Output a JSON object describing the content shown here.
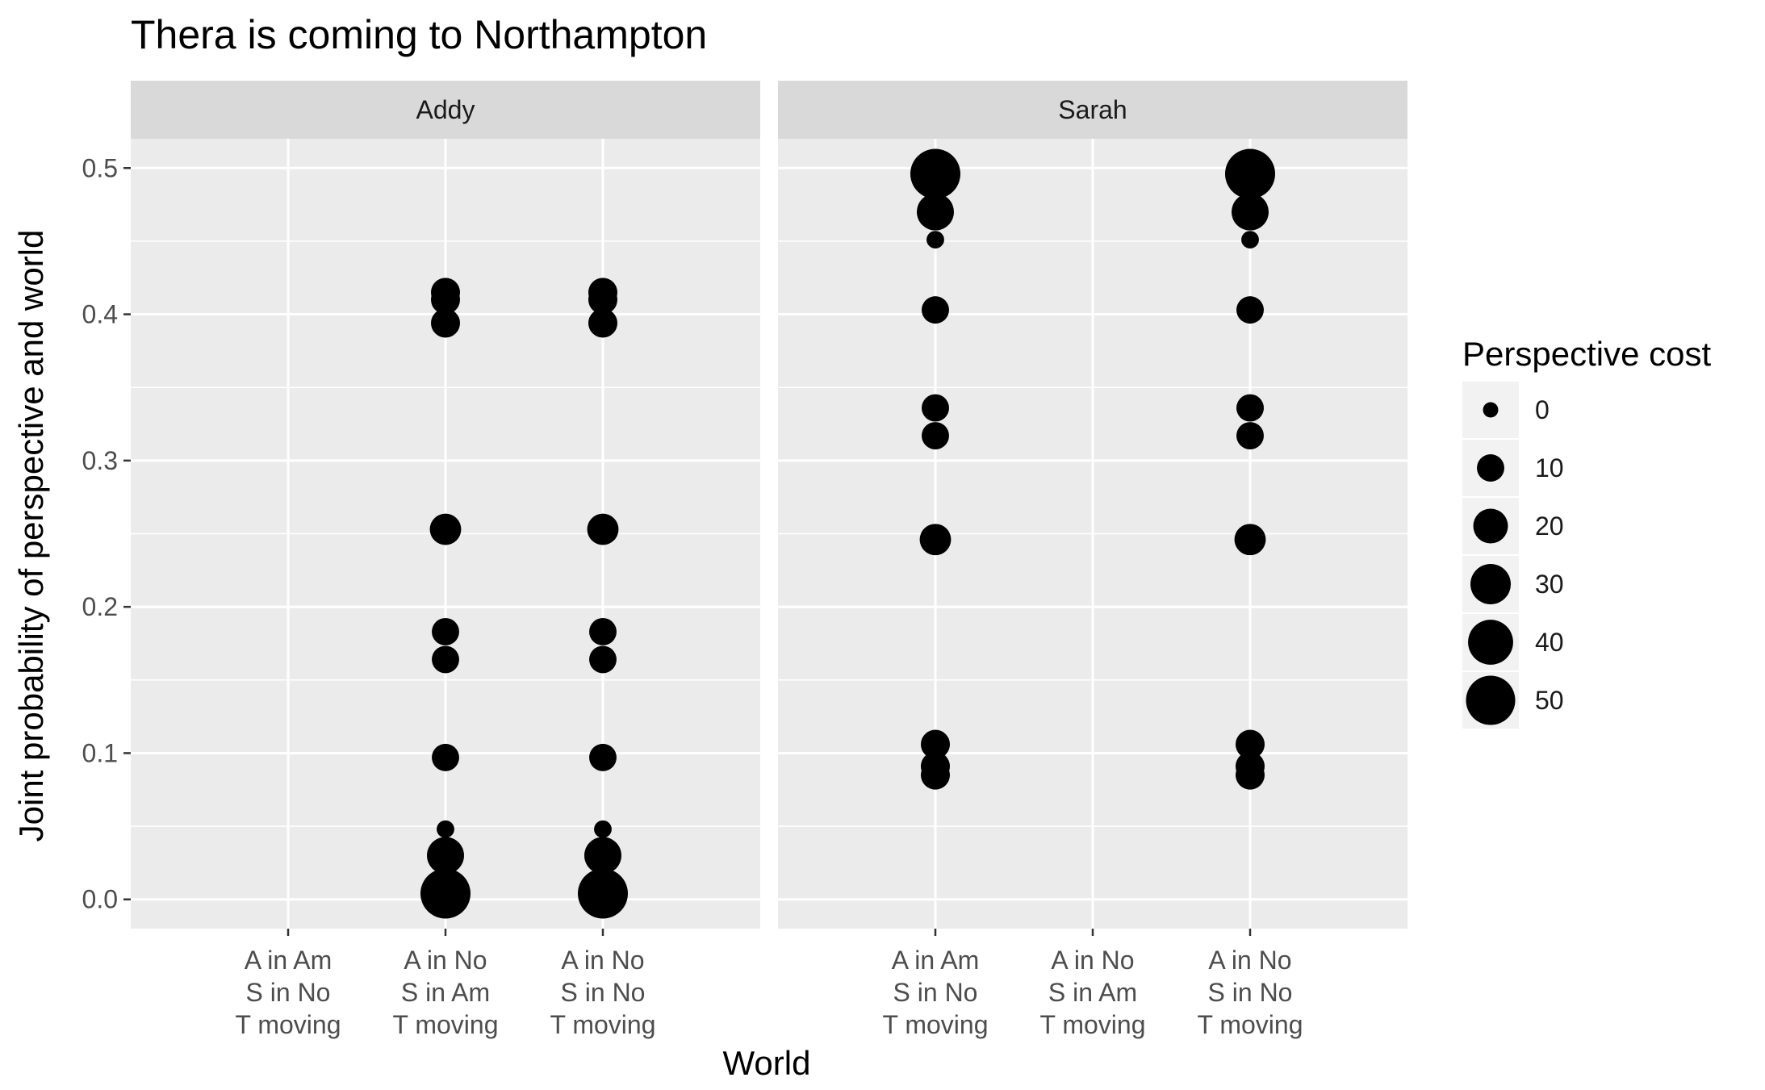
{
  "chart_data": {
    "type": "scatter",
    "title": "Thera is coming to Northampton",
    "xlabel": "World",
    "ylabel": "Joint probability of perspective and world",
    "ylim": [
      -0.02,
      0.52
    ],
    "y_ticks": [
      "0.0",
      "0.1",
      "0.2",
      "0.3",
      "0.4",
      "0.5"
    ],
    "y_tick_values": [
      0.0,
      0.1,
      0.2,
      0.3,
      0.4,
      0.5
    ],
    "grid": true,
    "legend_position": "right",
    "categories": [
      [
        "A in Am",
        "S in No",
        "T moving"
      ],
      [
        "A in No",
        "S in Am",
        "T moving"
      ],
      [
        "A in No",
        "S in No",
        "T moving"
      ]
    ],
    "size_legend": {
      "title": "Perspective cost",
      "labels": [
        "0",
        "10",
        "20",
        "30",
        "40",
        "50"
      ],
      "values": [
        0,
        10,
        20,
        30,
        40,
        50
      ]
    },
    "panels": [
      {
        "name": "Addy",
        "points": [
          {
            "x": 2,
            "y": 0.415,
            "cost": 12
          },
          {
            "x": 2,
            "y": 0.41,
            "cost": 12
          },
          {
            "x": 2,
            "y": 0.394,
            "cost": 12
          },
          {
            "x": 2,
            "y": 0.253,
            "cost": 15
          },
          {
            "x": 2,
            "y": 0.183,
            "cost": 10
          },
          {
            "x": 2,
            "y": 0.164,
            "cost": 10
          },
          {
            "x": 2,
            "y": 0.097,
            "cost": 10
          },
          {
            "x": 2,
            "y": 0.048,
            "cost": 2
          },
          {
            "x": 2,
            "y": 0.03,
            "cost": 24
          },
          {
            "x": 2,
            "y": 0.004,
            "cost": 52
          },
          {
            "x": 3,
            "y": 0.415,
            "cost": 12
          },
          {
            "x": 3,
            "y": 0.41,
            "cost": 12
          },
          {
            "x": 3,
            "y": 0.394,
            "cost": 12
          },
          {
            "x": 3,
            "y": 0.253,
            "cost": 15
          },
          {
            "x": 3,
            "y": 0.183,
            "cost": 10
          },
          {
            "x": 3,
            "y": 0.164,
            "cost": 10
          },
          {
            "x": 3,
            "y": 0.097,
            "cost": 10
          },
          {
            "x": 3,
            "y": 0.048,
            "cost": 2
          },
          {
            "x": 3,
            "y": 0.03,
            "cost": 24
          },
          {
            "x": 3,
            "y": 0.004,
            "cost": 52
          }
        ]
      },
      {
        "name": "Sarah",
        "points": [
          {
            "x": 1,
            "y": 0.496,
            "cost": 52
          },
          {
            "x": 1,
            "y": 0.47,
            "cost": 24
          },
          {
            "x": 1,
            "y": 0.451,
            "cost": 2
          },
          {
            "x": 1,
            "y": 0.403,
            "cost": 10
          },
          {
            "x": 1,
            "y": 0.336,
            "cost": 10
          },
          {
            "x": 1,
            "y": 0.317,
            "cost": 10
          },
          {
            "x": 1,
            "y": 0.246,
            "cost": 15
          },
          {
            "x": 1,
            "y": 0.106,
            "cost": 12
          },
          {
            "x": 1,
            "y": 0.091,
            "cost": 12
          },
          {
            "x": 1,
            "y": 0.085,
            "cost": 12
          },
          {
            "x": 3,
            "y": 0.496,
            "cost": 52
          },
          {
            "x": 3,
            "y": 0.47,
            "cost": 24
          },
          {
            "x": 3,
            "y": 0.451,
            "cost": 2
          },
          {
            "x": 3,
            "y": 0.403,
            "cost": 10
          },
          {
            "x": 3,
            "y": 0.336,
            "cost": 10
          },
          {
            "x": 3,
            "y": 0.317,
            "cost": 10
          },
          {
            "x": 3,
            "y": 0.246,
            "cost": 15
          },
          {
            "x": 3,
            "y": 0.106,
            "cost": 12
          },
          {
            "x": 3,
            "y": 0.091,
            "cost": 12
          },
          {
            "x": 3,
            "y": 0.085,
            "cost": 12
          }
        ]
      }
    ],
    "colors": {
      "panel_background": "#ebebeb",
      "strip_background": "#d9d9d9",
      "grid": "#ffffff",
      "point": "#000000",
      "legend_key_background": "#f2f2f2"
    }
  }
}
